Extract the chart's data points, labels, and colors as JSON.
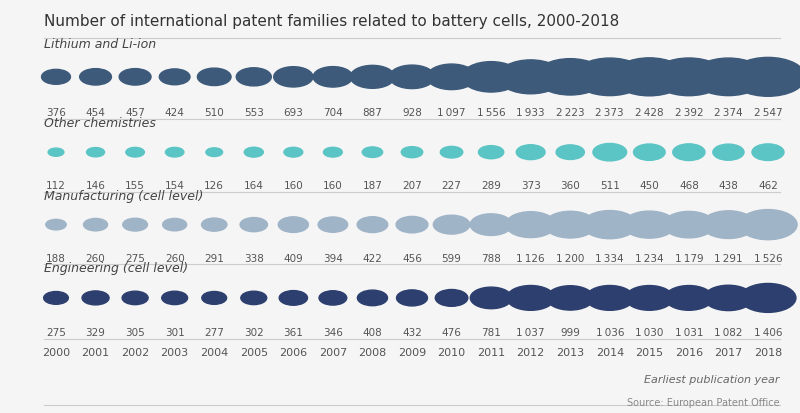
{
  "title": "Number of international patent families related to battery cells, 2000-2018",
  "source": "Source: European Patent Office",
  "xlabel": "Earliest publication year",
  "years": [
    2000,
    2001,
    2002,
    2003,
    2004,
    2005,
    2006,
    2007,
    2008,
    2009,
    2010,
    2011,
    2012,
    2013,
    2014,
    2015,
    2016,
    2017,
    2018
  ],
  "series": [
    {
      "label": "Lithium and Li-ion",
      "values": [
        376,
        454,
        457,
        424,
        510,
        553,
        693,
        704,
        887,
        928,
        1097,
        1556,
        1933,
        2223,
        2373,
        2428,
        2392,
        2374,
        2547
      ],
      "color": "#3d5a7a",
      "row": 0
    },
    {
      "label": "Other chemistries",
      "values": [
        112,
        146,
        155,
        154,
        126,
        164,
        160,
        160,
        187,
        207,
        227,
        289,
        373,
        360,
        511,
        450,
        468,
        438,
        462
      ],
      "color": "#5bc4c4",
      "row": 1
    },
    {
      "label": "Manufacturing (cell level)",
      "values": [
        188,
        260,
        275,
        260,
        291,
        338,
        409,
        394,
        422,
        456,
        599,
        788,
        1126,
        1200,
        1334,
        1234,
        1179,
        1291,
        1526
      ],
      "color": "#a0b4c8",
      "row": 2
    },
    {
      "label": "Engineering (cell level)",
      "values": [
        275,
        329,
        305,
        301,
        277,
        302,
        361,
        346,
        408,
        432,
        476,
        781,
        1037,
        999,
        1036,
        1030,
        1031,
        1082,
        1406
      ],
      "color": "#2d3f6e",
      "row": 3
    }
  ],
  "background_color": "#f5f5f5",
  "title_fontsize": 11,
  "label_fontsize": 9,
  "value_fontsize": 7.5,
  "year_fontsize": 8
}
